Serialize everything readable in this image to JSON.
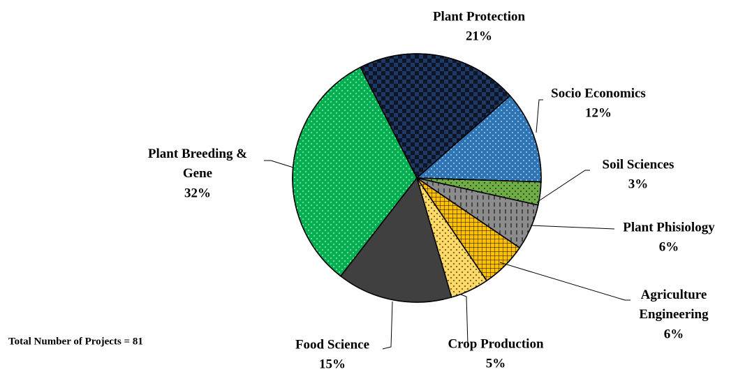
{
  "chart_data": {
    "type": "pie",
    "categories": [
      "Plant Protection",
      "Socio Economics",
      "Soil Sciences",
      "Plant Phisiology",
      "Agriculture Engineering",
      "Crop Production",
      "Food Science",
      "Plant Breeding & Gene"
    ],
    "values": [
      21,
      12,
      3,
      6,
      6,
      5,
      15,
      32
    ],
    "value_labels": [
      "21%",
      "12%",
      "3%",
      "6%",
      "6%",
      "5%",
      "15%",
      "32%"
    ],
    "colors": [
      "#1f3864",
      "#2e75b6",
      "#70ad47",
      "#8c8c8c",
      "#ffc000",
      "#ffd966",
      "#404040",
      "#00b050"
    ],
    "annotation": "Total  Number of Projects = 81"
  }
}
